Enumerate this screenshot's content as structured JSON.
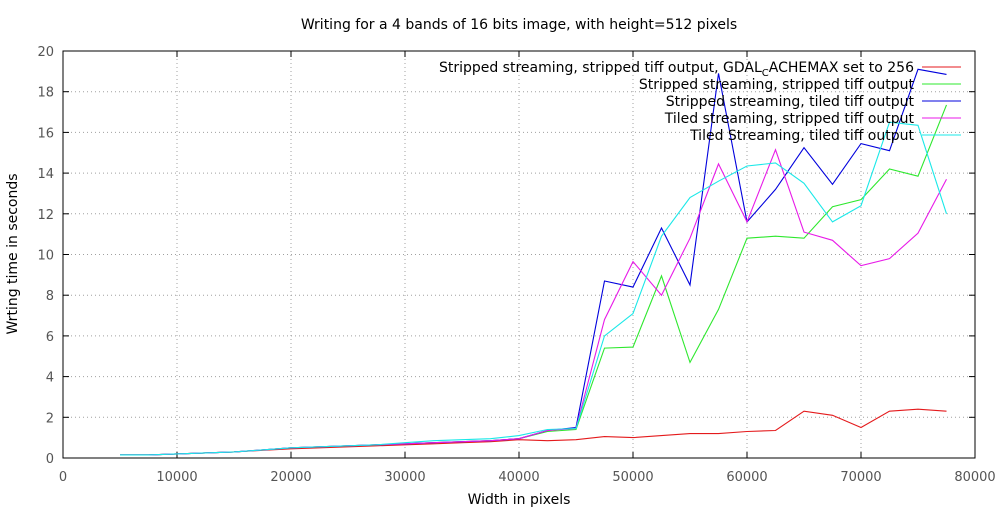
{
  "chart_data": {
    "type": "line",
    "title": "Writing for a 4 bands of 16 bits image, with height=512 pixels",
    "xlabel": "Width in pixels",
    "ylabel": "Wrting time in seconds",
    "xlim": [
      0,
      80000
    ],
    "ylim": [
      0,
      20
    ],
    "xticks": [
      0,
      10000,
      20000,
      30000,
      40000,
      50000,
      60000,
      70000,
      80000
    ],
    "yticks": [
      0,
      2,
      4,
      6,
      8,
      10,
      12,
      14,
      16,
      18,
      20
    ],
    "grid": true,
    "legend_position": "top-right",
    "x": [
      5000,
      7500,
      10000,
      12500,
      15000,
      17500,
      20000,
      22500,
      25000,
      27500,
      30000,
      32500,
      35000,
      37500,
      40000,
      42500,
      45000,
      47500,
      50000,
      52500,
      55000,
      57500,
      60000,
      62500,
      65000,
      67500,
      70000,
      72500,
      75000,
      77500
    ],
    "series": [
      {
        "name": "Stripped streaming, stripped tiff output, GDAL_CACHEMAX set to 256",
        "color": "#e41a1c",
        "values": [
          0.15,
          0.15,
          0.2,
          0.25,
          0.3,
          0.38,
          0.45,
          0.5,
          0.55,
          0.6,
          0.65,
          0.7,
          0.75,
          0.8,
          0.9,
          0.85,
          0.9,
          1.05,
          1.0,
          1.1,
          1.2,
          1.2,
          1.3,
          1.35,
          2.3,
          2.1,
          1.5,
          2.3,
          2.4,
          2.3
        ]
      },
      {
        "name": "Stripped streaming, stripped tiff output",
        "color": "#2ee82e",
        "values": [
          0.15,
          0.15,
          0.2,
          0.25,
          0.3,
          0.4,
          0.5,
          0.55,
          0.6,
          0.65,
          0.7,
          0.75,
          0.8,
          0.85,
          0.95,
          1.3,
          1.4,
          5.4,
          5.45,
          8.95,
          4.7,
          7.3,
          10.8,
          10.9,
          10.8,
          12.35,
          12.7,
          14.2,
          13.85,
          17.35
        ]
      },
      {
        "name": "Stripped streaming, tiled tiff output",
        "color": "#0000dd",
        "values": [
          0.15,
          0.15,
          0.2,
          0.25,
          0.3,
          0.4,
          0.5,
          0.55,
          0.6,
          0.65,
          0.7,
          0.75,
          0.8,
          0.85,
          0.95,
          1.35,
          1.5,
          8.7,
          8.4,
          11.3,
          8.5,
          18.9,
          11.6,
          13.2,
          15.25,
          13.45,
          15.45,
          15.1,
          19.1,
          18.85
        ]
      },
      {
        "name": "Tiled streaming, stripped tiff output",
        "color": "#e81ae8",
        "values": [
          0.15,
          0.15,
          0.2,
          0.25,
          0.3,
          0.4,
          0.5,
          0.55,
          0.6,
          0.65,
          0.7,
          0.75,
          0.8,
          0.85,
          0.95,
          1.35,
          1.45,
          6.8,
          9.65,
          8.0,
          10.8,
          14.45,
          11.6,
          15.15,
          11.1,
          10.7,
          9.45,
          9.8,
          11.05,
          13.7
        ]
      },
      {
        "name": "Tiled Streaming, tiled tiff output",
        "color": "#1ae8e8",
        "values": [
          0.15,
          0.15,
          0.2,
          0.25,
          0.3,
          0.4,
          0.5,
          0.55,
          0.6,
          0.65,
          0.75,
          0.85,
          0.9,
          0.95,
          1.1,
          1.4,
          1.45,
          6.0,
          7.1,
          10.9,
          12.8,
          13.6,
          14.35,
          14.5,
          13.5,
          11.6,
          12.4,
          16.5,
          16.35,
          12.0
        ]
      }
    ]
  }
}
